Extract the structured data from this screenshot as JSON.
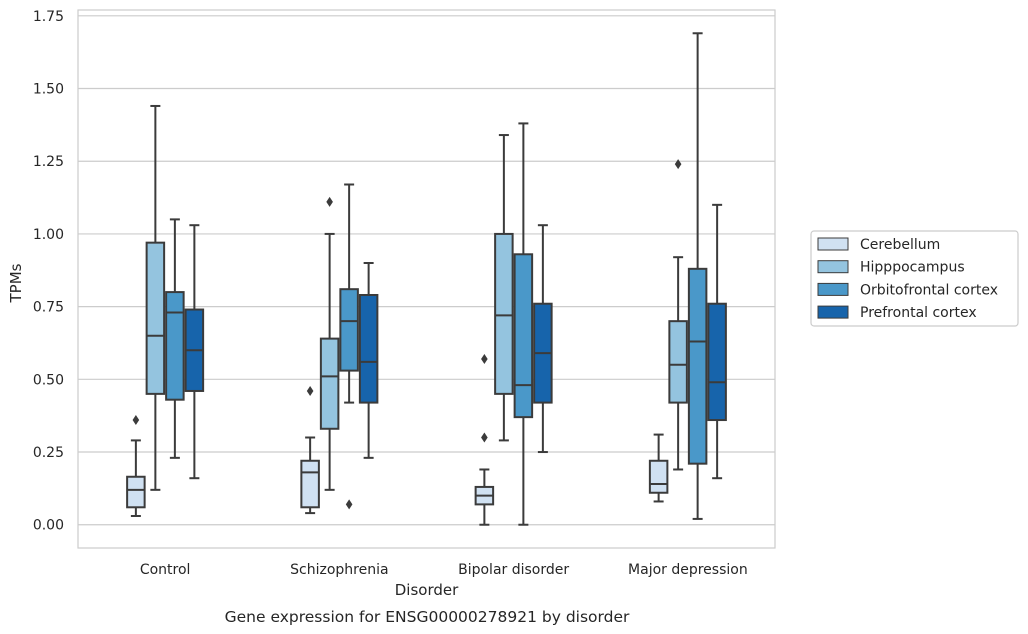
{
  "chart_data": {
    "type": "box",
    "title": "",
    "caption": "Gene expression for ENSG00000278921 by disorder",
    "xlabel": "Disorder",
    "ylabel": "TPMs",
    "ylim": [
      -0.08,
      1.77
    ],
    "yticks": [
      "0.00",
      "0.25",
      "0.50",
      "0.75",
      "1.00",
      "1.25",
      "1.50",
      "1.75"
    ],
    "grid": "horizontal",
    "legend_position": "right",
    "categories": [
      "Control",
      "Schizophrenia",
      "Bipolar disorder",
      "Major depression"
    ],
    "series": [
      {
        "name": "Cerebellum",
        "color": "#d0e1f2",
        "boxes": [
          {
            "whisker_low": 0.03,
            "q1": 0.06,
            "median": 0.12,
            "q3": 0.165,
            "whisker_high": 0.29,
            "outliers": [
              0.36
            ]
          },
          {
            "whisker_low": 0.04,
            "q1": 0.06,
            "median": 0.18,
            "q3": 0.22,
            "whisker_high": 0.3,
            "outliers": [
              0.46
            ]
          },
          {
            "whisker_low": 0.0,
            "q1": 0.07,
            "median": 0.1,
            "q3": 0.13,
            "whisker_high": 0.19,
            "outliers": [
              0.3,
              0.57
            ]
          },
          {
            "whisker_low": 0.08,
            "q1": 0.11,
            "median": 0.14,
            "q3": 0.22,
            "whisker_high": 0.31,
            "outliers": []
          }
        ]
      },
      {
        "name": "Hipppocampus",
        "color": "#94c4df",
        "boxes": [
          {
            "whisker_low": 0.12,
            "q1": 0.45,
            "median": 0.65,
            "q3": 0.97,
            "whisker_high": 1.44,
            "outliers": []
          },
          {
            "whisker_low": 0.12,
            "q1": 0.33,
            "median": 0.51,
            "q3": 0.64,
            "whisker_high": 1.0,
            "outliers": [
              1.11
            ]
          },
          {
            "whisker_low": 0.29,
            "q1": 0.45,
            "median": 0.72,
            "q3": 1.0,
            "whisker_high": 1.34,
            "outliers": []
          },
          {
            "whisker_low": 0.19,
            "q1": 0.42,
            "median": 0.55,
            "q3": 0.7,
            "whisker_high": 0.92,
            "outliers": [
              1.24
            ]
          }
        ]
      },
      {
        "name": "Orbitofrontal cortex",
        "color": "#4a98c9",
        "boxes": [
          {
            "whisker_low": 0.23,
            "q1": 0.43,
            "median": 0.73,
            "q3": 0.8,
            "whisker_high": 1.05,
            "outliers": []
          },
          {
            "whisker_low": 0.42,
            "q1": 0.53,
            "median": 0.7,
            "q3": 0.81,
            "whisker_high": 1.17,
            "outliers": [
              0.07
            ]
          },
          {
            "whisker_low": 0.0,
            "q1": 0.37,
            "median": 0.48,
            "q3": 0.93,
            "whisker_high": 1.38,
            "outliers": []
          },
          {
            "whisker_low": 0.02,
            "q1": 0.21,
            "median": 0.63,
            "q3": 0.88,
            "whisker_high": 1.69,
            "outliers": []
          }
        ]
      },
      {
        "name": "Prefrontal cortex",
        "color": "#1764ab",
        "boxes": [
          {
            "whisker_low": 0.16,
            "q1": 0.46,
            "median": 0.6,
            "q3": 0.74,
            "whisker_high": 1.03,
            "outliers": []
          },
          {
            "whisker_low": 0.23,
            "q1": 0.42,
            "median": 0.56,
            "q3": 0.79,
            "whisker_high": 0.9,
            "outliers": []
          },
          {
            "whisker_low": 0.25,
            "q1": 0.42,
            "median": 0.59,
            "q3": 0.76,
            "whisker_high": 1.03,
            "outliers": []
          },
          {
            "whisker_low": 0.16,
            "q1": 0.36,
            "median": 0.49,
            "q3": 0.76,
            "whisker_high": 1.1,
            "outliers": []
          }
        ]
      }
    ]
  }
}
